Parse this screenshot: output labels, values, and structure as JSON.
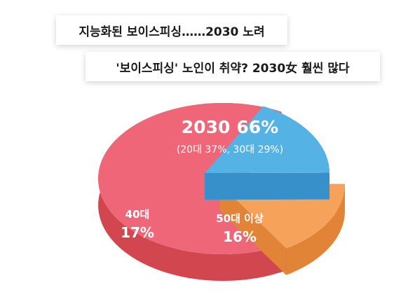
{
  "headline_1": "지능화된 보이스피싱……2030 노려",
  "headline_2": "'보이스피싱' 노인이 취약? 2030女 훨씬 많다",
  "chart_data": {
    "type": "pie",
    "slices": [
      {
        "label": "2030",
        "value": 66,
        "value_text": "66%",
        "detail": "(20대 37%, 30대 29%)",
        "color": "#ee6677",
        "side_color": "#d2474f"
      },
      {
        "label": "40대",
        "value": 17,
        "value_text": "17%",
        "color": "#54b2e4",
        "side_color": "#3890ca"
      },
      {
        "label": "50대 이상",
        "value": 16,
        "value_text": "16%",
        "color": "#f6a25a",
        "side_color": "#e28438"
      }
    ]
  }
}
